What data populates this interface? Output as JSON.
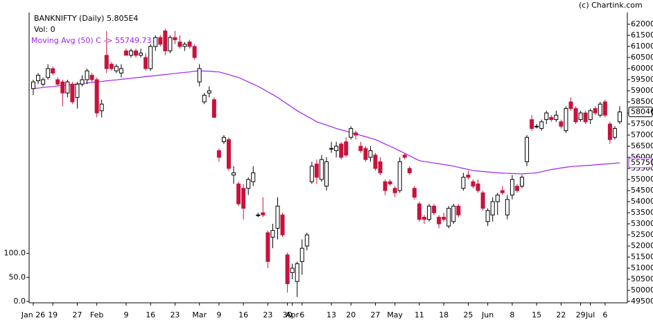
{
  "chart_data": {
    "type": "candlestick",
    "title": "BANKNIFTY (Daily) 5.805E4",
    "volume_label": "Vol: 0",
    "source": "(c) Chartink.com",
    "up_color": "#ffffff",
    "down_color": "#c8123c",
    "categories": [
      "Jan 26",
      null,
      null,
      null,
      "19",
      null,
      null,
      null,
      null,
      "27",
      null,
      null,
      null,
      "Feb",
      null,
      null,
      null,
      null,
      null,
      "9",
      null,
      null,
      null,
      null,
      "16",
      null,
      null,
      null,
      null,
      "23",
      null,
      null,
      null,
      null,
      "Mar",
      null,
      null,
      null,
      "9",
      null,
      null,
      null,
      null,
      "16",
      null,
      null,
      null,
      null,
      "23",
      null,
      null,
      null,
      "30",
      "Apr",
      null,
      "6",
      null,
      null,
      null,
      null,
      null,
      "13",
      null,
      null,
      null,
      "20",
      null,
      null,
      null,
      null,
      "27",
      null,
      null,
      null,
      "May",
      null,
      null,
      null,
      null,
      "11",
      null,
      null,
      null,
      null,
      "18",
      null,
      null,
      null,
      null,
      "25",
      null,
      null,
      null,
      "Jun",
      null,
      null,
      null,
      null,
      "8",
      null,
      null,
      null,
      null,
      "15",
      null,
      null,
      null,
      null,
      "22",
      null,
      null,
      null,
      "29",
      null,
      "Jul",
      null,
      null,
      "6",
      null,
      null,
      null
    ],
    "open": [
      59100,
      59450,
      59300,
      59600,
      60000,
      59500,
      59400,
      58900,
      59300,
      58700,
      59300,
      59500,
      59700,
      59500,
      58100,
      60600,
      60200,
      59900,
      59800,
      60800,
      60600,
      60800,
      60600,
      60500,
      60000,
      61000,
      61400,
      61700,
      60800,
      61400,
      61200,
      61000,
      61200,
      61000,
      59400,
      58500,
      58900,
      58600,
      56300,
      56700,
      56800,
      55200,
      54800,
      54600,
      54600,
      54900,
      53400,
      53500,
      52600,
      52400,
      52800,
      53400,
      51600,
      50800,
      50400,
      51300,
      52000,
      54900,
      55700,
      55000,
      54700,
      56400,
      56300,
      56600,
      56700,
      56900,
      57100,
      56500,
      56400,
      56000,
      56100,
      55800,
      54900,
      54900,
      54600,
      54500,
      56100,
      55500,
      54600,
      53900,
      53300,
      53200,
      53800,
      53300,
      53300,
      52900,
      53100,
      53800,
      54600,
      55200,
      54900,
      54800,
      54400,
      53100,
      53400,
      54000,
      54500,
      53400,
      54300,
      54700,
      54700,
      55800,
      57700,
      57400,
      57300,
      57700,
      57800,
      57700,
      57600,
      57200,
      58500,
      58200,
      57700,
      58000,
      57700,
      58200,
      57900,
      58500,
      57500,
      56900,
      57600
    ],
    "high": [
      59500,
      59800,
      59600,
      60200,
      60100,
      59600,
      59500,
      59500,
      59400,
      59400,
      59700,
      60000,
      59800,
      59600,
      58600,
      61700,
      60300,
      60200,
      60200,
      60900,
      60900,
      60900,
      60900,
      60700,
      61100,
      61500,
      61500,
      61800,
      61500,
      61700,
      61500,
      61200,
      61300,
      61100,
      60200,
      58900,
      59200,
      58700,
      56400,
      57000,
      56900,
      55600,
      54900,
      54800,
      55100,
      55600,
      53500,
      54200,
      52700,
      53000,
      54200,
      53500,
      51700,
      51200,
      51300,
      52300,
      52600,
      55800,
      55900,
      56100,
      56000,
      56700,
      56700,
      56700,
      56900,
      57400,
      57200,
      56700,
      56500,
      56500,
      56200,
      56000,
      55000,
      55000,
      54700,
      56000,
      56200,
      55600,
      54700,
      54000,
      53400,
      53900,
      53900,
      53400,
      53500,
      53800,
      53900,
      53900,
      55300,
      55400,
      55000,
      55000,
      54500,
      53700,
      54200,
      54400,
      54700,
      54300,
      55200,
      54800,
      55200,
      57000,
      57900,
      57500,
      57700,
      58100,
      57900,
      58100,
      57700,
      58300,
      58700,
      58300,
      58100,
      58100,
      58200,
      58300,
      58500,
      58600,
      57600,
      57400,
      58300
    ],
    "low": [
      58800,
      59300,
      59200,
      59500,
      59700,
      59200,
      58300,
      58700,
      58400,
      58200,
      59200,
      59300,
      59400,
      57800,
      57800,
      59800,
      59900,
      59800,
      59600,
      60600,
      60500,
      60500,
      60500,
      59900,
      59900,
      60800,
      61000,
      60600,
      60700,
      61100,
      60900,
      60800,
      60900,
      60400,
      59200,
      58400,
      58700,
      57800,
      55800,
      56600,
      55400,
      54800,
      53800,
      53200,
      54300,
      54700,
      53300,
      53300,
      51000,
      51900,
      52300,
      52400,
      49900,
      50500,
      49700,
      50700,
      51800,
      54800,
      54800,
      54900,
      54500,
      56200,
      56000,
      55900,
      56000,
      56800,
      56800,
      56200,
      55800,
      55800,
      55400,
      55200,
      54300,
      54700,
      54200,
      54400,
      55900,
      55200,
      54100,
      53100,
      53000,
      53100,
      53400,
      52800,
      53100,
      52800,
      53000,
      53300,
      54500,
      55000,
      54600,
      54400,
      53600,
      52900,
      53100,
      53400,
      54300,
      53200,
      54100,
      54400,
      54600,
      55600,
      57200,
      57300,
      57200,
      57500,
      57600,
      57600,
      57300,
      57100,
      58100,
      57500,
      57600,
      57500,
      57500,
      57900,
      57800,
      57800,
      56600,
      56800,
      57500
    ],
    "close": [
      59400,
      59700,
      59500,
      60000,
      59800,
      59300,
      58900,
      59400,
      58500,
      59300,
      59500,
      59900,
      59500,
      58000,
      58400,
      60000,
      60000,
      60100,
      60000,
      60600,
      60800,
      60600,
      60700,
      60000,
      61000,
      61400,
      61100,
      60800,
      61400,
      61300,
      61000,
      61100,
      61000,
      60500,
      60000,
      58800,
      59000,
      57800,
      56000,
      56900,
      55500,
      55300,
      53900,
      53700,
      55000,
      55300,
      53400,
      53400,
      51300,
      52700,
      53800,
      52500,
      50300,
      51000,
      51200,
      51900,
      52500,
      55600,
      55100,
      55900,
      55800,
      56400,
      56500,
      56000,
      56100,
      57300,
      57000,
      56300,
      55900,
      56300,
      55500,
      55300,
      54500,
      54800,
      54400,
      55800,
      56000,
      55300,
      54200,
      53200,
      53200,
      53800,
      53500,
      53000,
      53200,
      53700,
      53800,
      53400,
      55100,
      55100,
      54700,
      54500,
      53700,
      53600,
      54000,
      54300,
      54400,
      54100,
      55000,
      54500,
      55100,
      56900,
      57300,
      57400,
      57600,
      58000,
      57700,
      57900,
      57400,
      58200,
      58200,
      57600,
      58000,
      57600,
      58100,
      58000,
      58400,
      57900,
      56800,
      57300,
      58046
    ],
    "moving_average": {
      "name": "Moving Avg (50) C -> 55749.73",
      "color": "#a020f0",
      "values": [
        59100,
        59120,
        59150,
        59170,
        59190,
        59220,
        59240,
        59260,
        59280,
        59310,
        59330,
        59350,
        59380,
        59400,
        59420,
        59450,
        59470,
        59490,
        59520,
        59540,
        59560,
        59590,
        59610,
        59640,
        59660,
        59680,
        59710,
        59730,
        59760,
        59780,
        59810,
        59830,
        59850,
        59880,
        59900,
        59890,
        59880,
        59860,
        59850,
        59790,
        59730,
        59660,
        59600,
        59500,
        59400,
        59300,
        59200,
        59080,
        58950,
        58830,
        58700,
        58550,
        58400,
        58250,
        58100,
        57980,
        57850,
        57730,
        57600,
        57530,
        57450,
        57380,
        57300,
        57240,
        57180,
        57110,
        57050,
        56990,
        56930,
        56860,
        56800,
        56700,
        56600,
        56500,
        56400,
        56290,
        56180,
        56070,
        55960,
        55850,
        55810,
        55780,
        55740,
        55710,
        55670,
        55640,
        55600,
        55550,
        55500,
        55450,
        55400,
        55380,
        55360,
        55340,
        55320,
        55300,
        55290,
        55280,
        55270,
        55260,
        55250,
        55270,
        55280,
        55300,
        55350,
        55400,
        55450,
        55480,
        55520,
        55550,
        55580,
        55600,
        55610,
        55630,
        55640,
        55660,
        55680,
        55700,
        55710,
        55730,
        55750
      ]
    },
    "ylim": [
      49437.5,
      62531.25
    ],
    "yticks": [
      49500,
      50000,
      50500,
      51000,
      51500,
      52000,
      52500,
      53000,
      53500,
      54000,
      54500,
      55000,
      55500,
      56000,
      56500,
      57000,
      57500,
      58000,
      58500,
      59000,
      59500,
      60000,
      60500,
      61000,
      61500,
      62000
    ],
    "y2lim": [
      -2.9,
      601.4
    ],
    "y2ticks": [
      {
        "value": 0,
        "label": "0.0"
      },
      {
        "value": 50,
        "label": "50.0"
      },
      {
        "value": 100,
        "label": "100.0"
      }
    ]
  }
}
